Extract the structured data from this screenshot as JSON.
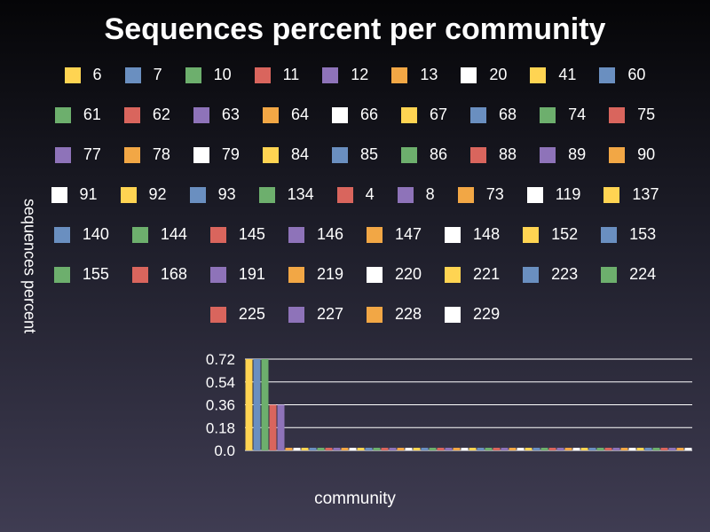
{
  "chart_data": {
    "type": "bar",
    "title": "Sequences percent per community",
    "xlabel": "community",
    "ylabel": "sequences percent",
    "y_ticks": [
      "0.0",
      "0.18",
      "0.36",
      "0.54",
      "0.72"
    ],
    "ylim": [
      0,
      0.72
    ],
    "grid": "horizontal",
    "legend_position": "top",
    "palette": [
      "#ffd452",
      "#6a8fc0",
      "#6daf6d",
      "#d9655d",
      "#8e73b9",
      "#f2a745",
      "#ffffff"
    ],
    "categories": [
      "6",
      "7",
      "10",
      "11",
      "12",
      "13",
      "20",
      "41",
      "60",
      "61",
      "62",
      "63",
      "64",
      "66",
      "67",
      "68",
      "74",
      "75",
      "77",
      "78",
      "79",
      "84",
      "85",
      "86",
      "88",
      "89",
      "90",
      "91",
      "92",
      "93",
      "134",
      "4",
      "8",
      "73",
      "119",
      "137",
      "140",
      "144",
      "145",
      "146",
      "147",
      "148",
      "152",
      "153",
      "155",
      "168",
      "191",
      "219",
      "220",
      "221",
      "223",
      "224",
      "225",
      "227",
      "228",
      "229"
    ],
    "values": [
      0.72,
      0.72,
      0.72,
      0.36,
      0.36,
      0,
      0,
      0,
      0,
      0,
      0,
      0,
      0,
      0,
      0,
      0,
      0,
      0,
      0,
      0,
      0,
      0,
      0,
      0,
      0,
      0,
      0,
      0,
      0,
      0,
      0,
      0,
      0,
      0,
      0,
      0,
      0,
      0,
      0,
      0,
      0,
      0,
      0,
      0,
      0,
      0,
      0,
      0,
      0,
      0,
      0,
      0,
      0,
      0,
      0,
      0
    ],
    "legend_rows": [
      9,
      9,
      9,
      9,
      8,
      8,
      4
    ]
  }
}
